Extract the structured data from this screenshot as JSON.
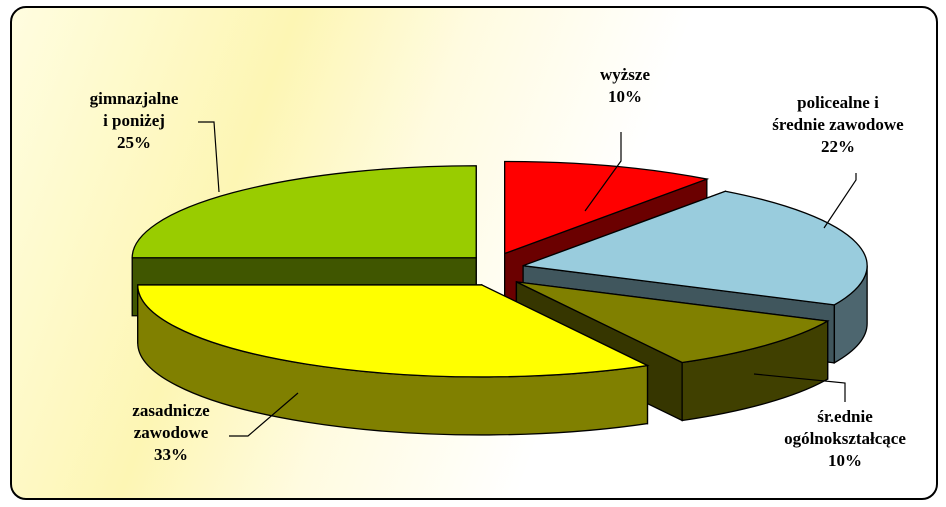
{
  "chart_data": {
    "type": "pie",
    "title": "",
    "style": "3d-exploded",
    "slices": [
      {
        "label": "wyższe",
        "value": 10,
        "display": "10%",
        "color": "#ff0000"
      },
      {
        "label": "policealne i średnie zawodowe",
        "value": 22,
        "display": "22%",
        "color": "#99ccdd"
      },
      {
        "label": "śr.ednie ogólnokształcące",
        "value": 10,
        "display": "10%",
        "color": "#808000"
      },
      {
        "label": "zasadnicze zawodowe",
        "value": 33,
        "display": "33%",
        "color": "#ffff00"
      },
      {
        "label": "gimnazjalne i poniżej",
        "value": 25,
        "display": "25%",
        "color": "#99cc00"
      }
    ]
  },
  "labels": {
    "wyzsze": {
      "line1": "wyższe",
      "pct": "10%"
    },
    "policealne": {
      "line1": "policealne i",
      "line2": "średnie zawodowe",
      "pct": "22%"
    },
    "srednie_ogolne": {
      "line1": "śr.ednie",
      "line2": "ogólnokształcące",
      "pct": "10%"
    },
    "zasadnicze": {
      "line1": "zasadnicze",
      "line2": "zawodowe",
      "pct": "33%"
    },
    "gimnazjalne": {
      "line1": "gimnazjalne",
      "line2": "i poniżej",
      "pct": "25%"
    }
  }
}
